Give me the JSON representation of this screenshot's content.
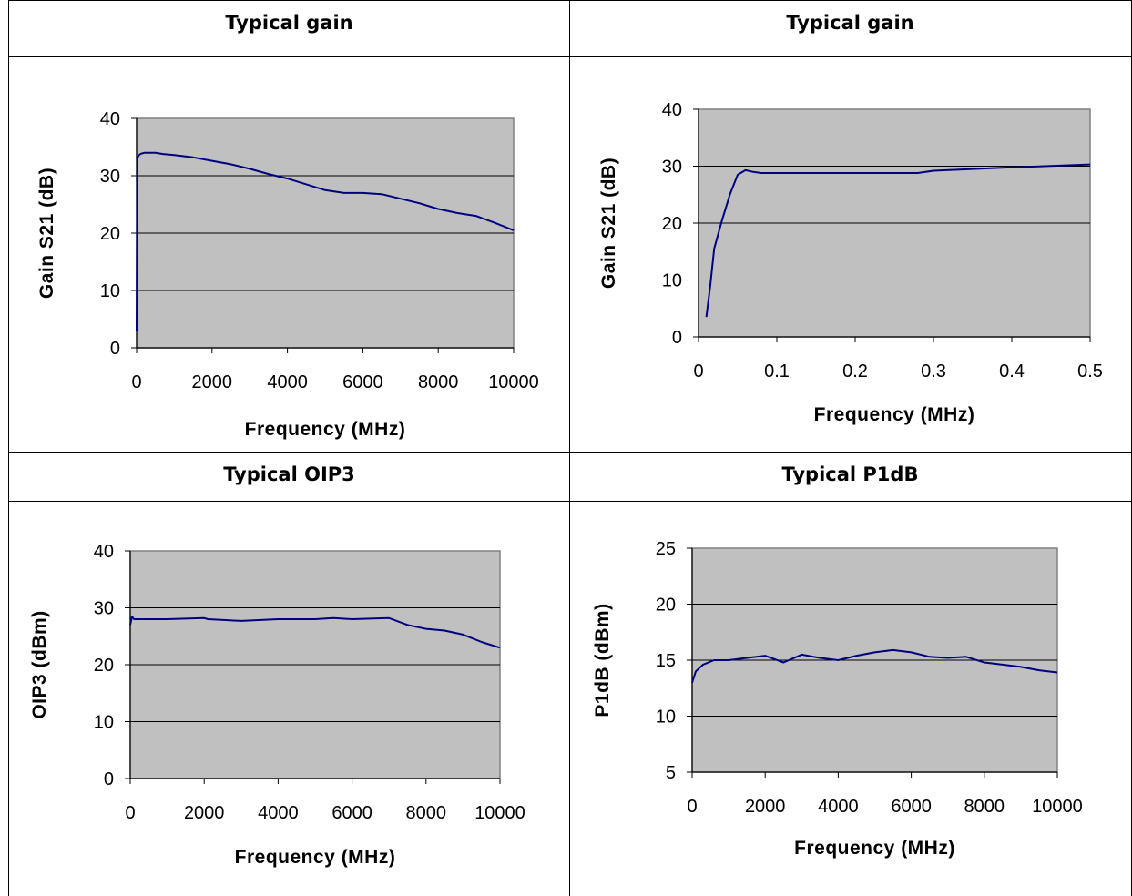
{
  "cells": [
    {
      "title": "Typical gain"
    },
    {
      "title": "Typical gain"
    },
    {
      "title": "Typical OIP3"
    },
    {
      "title": "Typical P1dB"
    }
  ],
  "colors": {
    "plot_bg": "#c0c0c0",
    "line": "#000080",
    "grid": "#000000"
  },
  "chart_data": [
    {
      "type": "line",
      "title": "Typical gain",
      "xlabel": "Frequency (MHz)",
      "ylabel": "Gain S21 (dB)",
      "xlim": [
        0,
        10000
      ],
      "ylim": [
        0,
        40
      ],
      "xticks": [
        0,
        2000,
        4000,
        6000,
        8000,
        10000
      ],
      "yticks": [
        0,
        10,
        20,
        30,
        40
      ],
      "grid": true,
      "legend": "none",
      "series": [
        {
          "x": [
            0,
            20,
            50,
            100,
            200,
            300,
            500,
            700,
            1000,
            1500,
            2000,
            2500,
            3000,
            3500,
            4000,
            4500,
            5000,
            5500,
            6000,
            6500,
            7000,
            7500,
            8000,
            8500,
            9000,
            9500,
            10000
          ],
          "y": [
            3,
            33,
            33.5,
            33.8,
            34,
            34,
            34,
            33.8,
            33.6,
            33.2,
            32.6,
            32,
            31.2,
            30.3,
            29.5,
            28.5,
            27.5,
            27,
            27,
            26.8,
            26,
            25.2,
            24.2,
            23.5,
            23,
            21.8,
            20.5
          ]
        }
      ]
    },
    {
      "type": "line",
      "title": "Typical gain",
      "xlabel": "Frequency (MHz)",
      "ylabel": "Gain S21 (dB)",
      "xlim": [
        0,
        0.5
      ],
      "ylim": [
        0,
        40
      ],
      "xticks": [
        0,
        0.1,
        0.2,
        0.3,
        0.4,
        0.5
      ],
      "yticks": [
        0,
        10,
        20,
        30,
        40
      ],
      "grid": true,
      "legend": "none",
      "series": [
        {
          "x": [
            0.01,
            0.015,
            0.02,
            0.03,
            0.04,
            0.05,
            0.06,
            0.07,
            0.08,
            0.1,
            0.2,
            0.28,
            0.3,
            0.4,
            0.5
          ],
          "y": [
            3.5,
            9,
            15.5,
            20.5,
            25,
            28.5,
            29.3,
            29,
            28.8,
            28.8,
            28.8,
            28.8,
            29.2,
            29.8,
            30.3
          ]
        }
      ]
    },
    {
      "type": "line",
      "title": "Typical OIP3",
      "xlabel": "Frequency (MHz)",
      "ylabel": "OIP3 (dBm)",
      "xlim": [
        0,
        10000
      ],
      "ylim": [
        0,
        40
      ],
      "xticks": [
        0,
        2000,
        4000,
        6000,
        8000,
        10000
      ],
      "yticks": [
        0,
        10,
        20,
        30,
        40
      ],
      "grid": true,
      "legend": "none",
      "series": [
        {
          "x": [
            0,
            50,
            100,
            300,
            1000,
            2000,
            2100,
            3000,
            4000,
            5000,
            5500,
            6000,
            7000,
            7500,
            8000,
            8500,
            9000,
            9500,
            10000
          ],
          "y": [
            27,
            28.5,
            28,
            28,
            28,
            28.2,
            28,
            27.7,
            28,
            28,
            28.2,
            28,
            28.2,
            27,
            26.3,
            26,
            25.3,
            24,
            23
          ]
        }
      ]
    },
    {
      "type": "line",
      "title": "Typical P1dB",
      "xlabel": "Frequency (MHz)",
      "ylabel": "P1dB (dBm)",
      "xlim": [
        0,
        10000
      ],
      "ylim": [
        5,
        25
      ],
      "xticks": [
        0,
        2000,
        4000,
        6000,
        8000,
        10000
      ],
      "yticks": [
        5,
        10,
        15,
        20,
        25
      ],
      "grid": true,
      "legend": "none",
      "series": [
        {
          "x": [
            0,
            100,
            300,
            600,
            1000,
            1500,
            2000,
            2500,
            3000,
            3500,
            4000,
            4500,
            5000,
            5500,
            6000,
            6500,
            7000,
            7500,
            8000,
            8500,
            9000,
            9500,
            10000
          ],
          "y": [
            13,
            14,
            14.6,
            15,
            15,
            15.2,
            15.4,
            14.8,
            15.5,
            15.2,
            15,
            15.4,
            15.7,
            15.9,
            15.7,
            15.3,
            15.2,
            15.3,
            14.8,
            14.6,
            14.4,
            14.1,
            13.9
          ]
        }
      ]
    }
  ]
}
